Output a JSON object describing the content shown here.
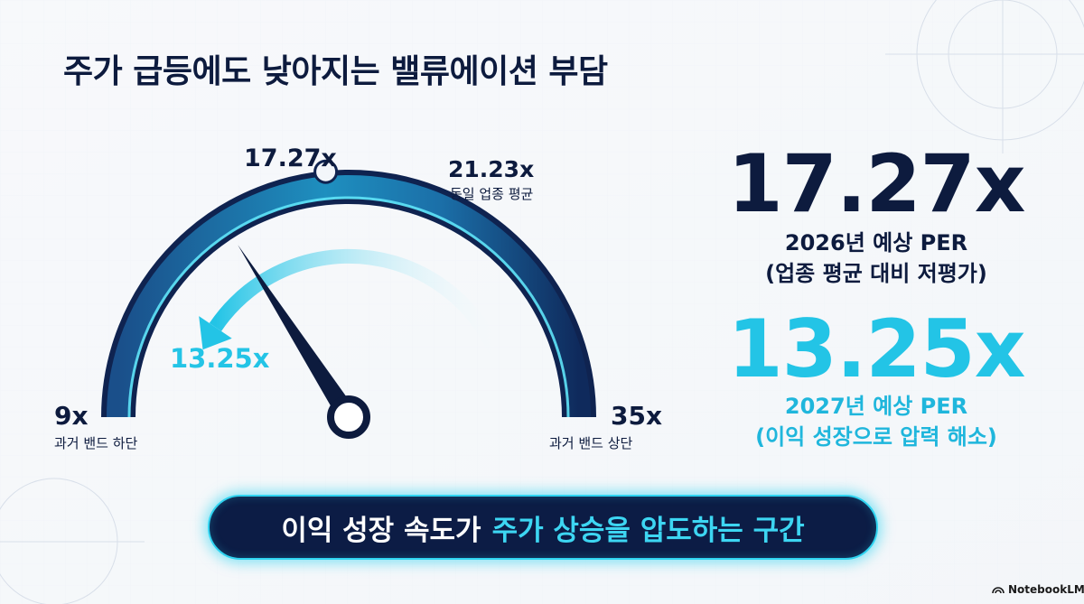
{
  "title": "주가 급등에도 낮아지는 밸류에이션 부담",
  "chart_data": {
    "type": "gauge",
    "min": 9,
    "max": 35,
    "min_value_label": "9x",
    "min_caption": "과거 밴드 하단",
    "max_value_label": "35x",
    "max_caption": "과거 밴드 상단",
    "needle": {
      "value": 17.27,
      "label": "17.27x"
    },
    "industry_avg": {
      "value": 21.23,
      "label": "21.23x",
      "caption": "동일 업종 평균"
    },
    "forecast": {
      "value": 13.25,
      "label": "13.25x"
    }
  },
  "right_panel": {
    "per_2026_value": "17.27x",
    "per_2026_line1": "2026년 예상 PER",
    "per_2026_line2": "(업종 평균 대비 저평가)",
    "per_2027_value": "13.25x",
    "per_2027_line1": "2027년 예상 PER",
    "per_2027_line2": "(이익 성장으로 압력 해소)"
  },
  "banner": {
    "text_main": "이익 성장 속도가",
    "text_highlight": "주가 상승을 압도하는 구간"
  },
  "logo_text": "NotebookLM",
  "colors": {
    "navy": "#0d1b3e",
    "cyan": "#23c4e6",
    "banner_glow": "#2fd3f0"
  }
}
